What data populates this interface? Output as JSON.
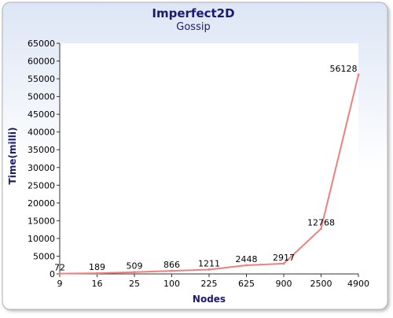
{
  "chart_data": {
    "type": "line",
    "title": "Imperfect2D",
    "subtitle": "Gossip",
    "xlabel": "Nodes",
    "ylabel": "Time(milli)",
    "categories": [
      "9",
      "16",
      "25",
      "100",
      "225",
      "625",
      "900",
      "2500",
      "4900"
    ],
    "series": [
      {
        "values": [
          72,
          189,
          509,
          866,
          1211,
          2448,
          2917,
          12768,
          56128
        ]
      }
    ],
    "ylim": [
      0,
      65000
    ],
    "yticks": [
      "0",
      "5000",
      "10000",
      "15000",
      "20000",
      "25000",
      "30000",
      "35000",
      "40000",
      "45000",
      "50000",
      "55000",
      "60000",
      "65000"
    ],
    "grid": false,
    "legend": "none",
    "colors": {
      "title": "#1a1a6e",
      "subtitle": "#1a1a6e",
      "axis_label": "#1a1a6e",
      "line": "#ef7f7f",
      "background_top": "#dde6f5",
      "background_bottom": "#ffffff"
    }
  }
}
